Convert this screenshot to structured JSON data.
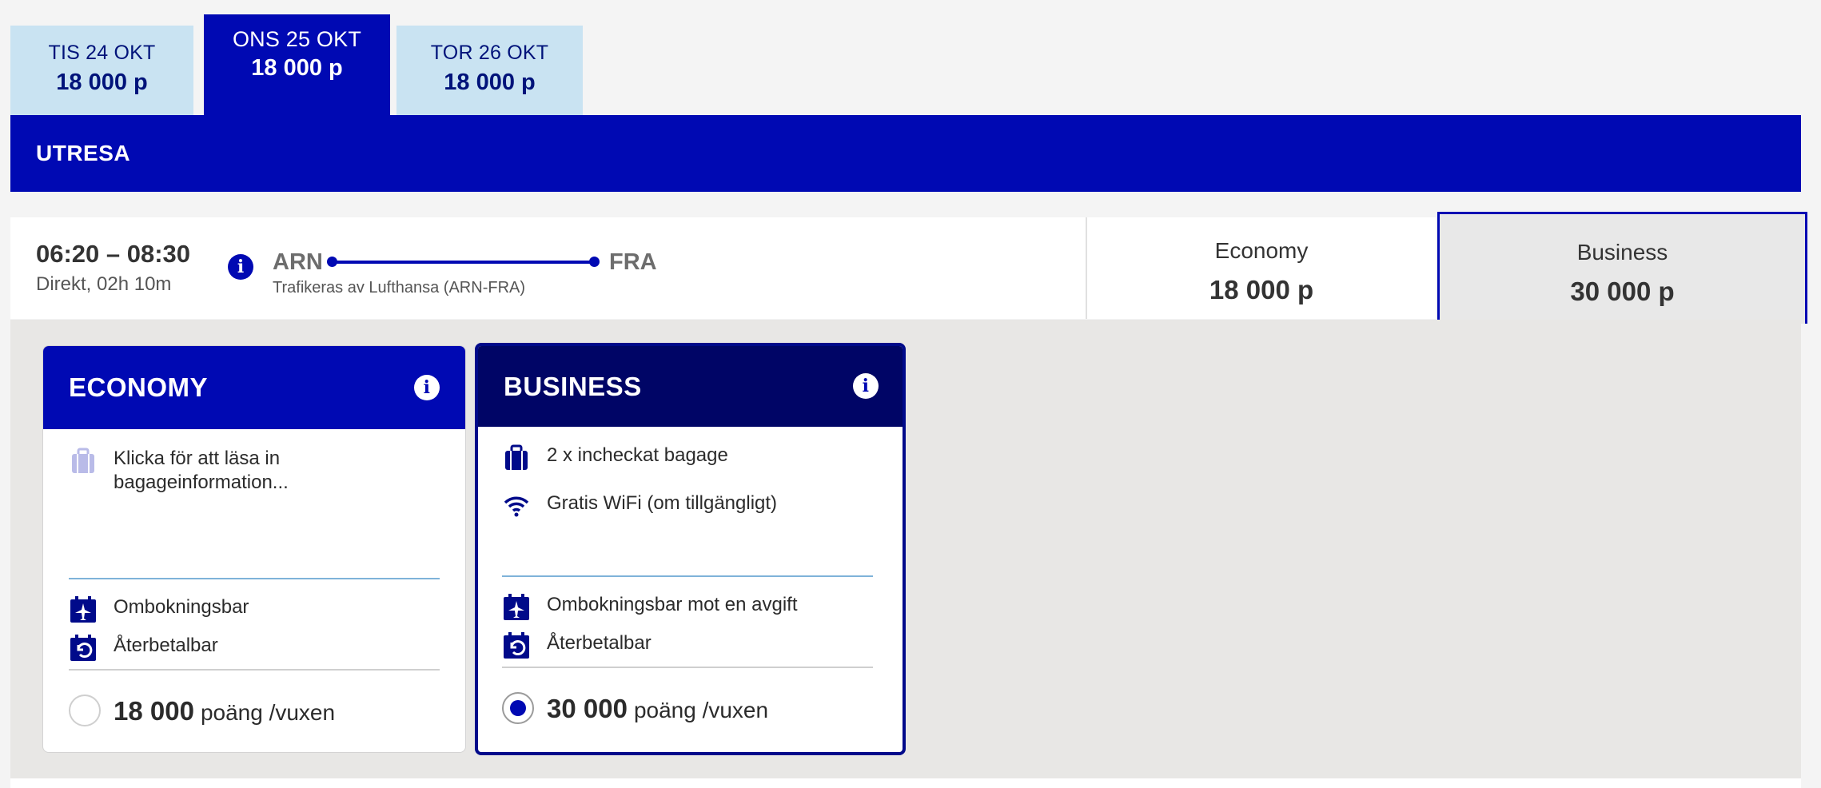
{
  "date_tabs": [
    {
      "date": "TIS 24 OKT",
      "price": "18 000 p"
    },
    {
      "date": "ONS 25 OKT",
      "price": "18 000 p"
    },
    {
      "date": "TOR 26 OKT",
      "price": "18 000 p"
    }
  ],
  "section": {
    "title": "UTRESA"
  },
  "flight": {
    "time": "06:20 – 08:30",
    "duration": "Direkt, 02h 10m",
    "from": "ARN",
    "to": "FRA",
    "operated_by": "Trafikeras av Lufthansa (ARN-FRA)"
  },
  "fares": [
    {
      "name": "Economy",
      "price": "18 000 p"
    },
    {
      "name": "Business",
      "price": "30 000 p"
    }
  ],
  "cards": {
    "economy": {
      "title": "ECONOMY",
      "baggage": "Klicka för att läsa in bagageinformation...",
      "rebook": "Ombokningsbar",
      "refund": "Återbetalbar",
      "points": "18 000",
      "unit": "poäng /vuxen",
      "selected": false
    },
    "business": {
      "title": "BUSINESS",
      "baggage": "2 x incheckat bagage",
      "wifi": "Gratis WiFi (om tillgängligt)",
      "rebook": "Ombokningsbar mot en avgift",
      "refund": "Återbetalbar",
      "points": "30 000",
      "unit": "poäng /vuxen",
      "selected": true
    }
  },
  "colors": {
    "brand": "#0009b3",
    "dark_brand": "#000566",
    "tab_light": "#c9e3f2"
  }
}
